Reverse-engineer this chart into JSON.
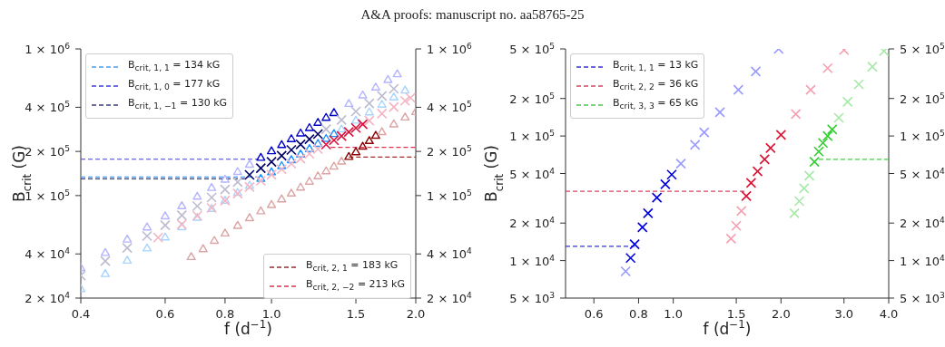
{
  "chart_data": [
    {
      "type": "scatter",
      "annotations": [
        "A&A proofs: manuscript no. aa58765-25"
      ],
      "xlabel": "f (d$^{−1}$)",
      "ylabel": "B$_{crit}$ (G)",
      "log": "xy",
      "legend": [
        "top left",
        "bottom right"
      ],
      "xlim": [
        0.4,
        2.0
      ],
      "xticks": [
        0.4,
        0.6,
        0.8,
        {
          "value": 1,
          "label": "1.0"
        },
        1.5,
        {
          "value": 2,
          "label": "2.0"
        }
      ],
      "ylim": [
        20000,
        1000000
      ],
      "yticks": [
        {
          "value": 20000,
          "label": "2 × 10$^{4}$"
        },
        {
          "value": 40000,
          "label": "4 × 10$^{4}$"
        },
        {
          "value": 100000,
          "label": "1 × 10$^{5}$"
        },
        {
          "value": 200000,
          "label": "2 × 10$^{5}$"
        },
        {
          "value": 400000,
          "label": "4 × 10$^{5}$"
        },
        {
          "value": 1000000,
          "label": "1 × 10$^{6}$"
        }
      ],
      "series": [
        {
          "type": "line",
          "name": "B$_{crit, 1, 1}$ = 134 kG",
          "color": "#3fa0ff",
          "line_style": "dashed",
          "x": [
            0.4,
            0.94
          ],
          "values": [
            134000,
            134000
          ]
        },
        {
          "type": "line",
          "name": "B$_{crit, 1, 0}$ = 177 kG",
          "color": "#3a3aee",
          "line_style": "dashed",
          "x": [
            0.4,
            0.94
          ],
          "values": [
            177000,
            177000
          ]
        },
        {
          "type": "line",
          "name": "B$_{crit, 1, −1}$ = 130 kG",
          "color": "#3a3a80",
          "line_style": "dashed",
          "x": [
            0.4,
            0.88
          ],
          "values": [
            130000,
            130000
          ]
        },
        {
          "type": "line",
          "name": "B$_{crit, 2, 1}$ = 183 kG",
          "color": "#a02828",
          "line_style": "dashed",
          "x": [
            1.45,
            2.0
          ],
          "values": [
            183000,
            183000
          ]
        },
        {
          "type": "line",
          "name": "B$_{crit, 2, −2}$ = 213 kG",
          "color": "#e03050",
          "line_style": "dashed",
          "x": [
            1.33,
            2.0
          ],
          "values": [
            213000,
            213000
          ]
        },
        {
          "type": "scatter",
          "marker": "triangle",
          "x": [
            0.4,
            0.45,
            0.5,
            0.55,
            0.6,
            0.65,
            0.7,
            0.75,
            0.8,
            0.85,
            0.9,
            0.95,
            1.0,
            1.05,
            1.1,
            1.15,
            1.2,
            1.25,
            1.3,
            1.35,
            1.4,
            1.5,
            1.6,
            1.7,
            1.8,
            1.9
          ],
          "values": [
            23000,
            29100,
            35900,
            43500,
            51700,
            60700,
            70400,
            80900,
            92000,
            103900,
            116400,
            129700,
            143800,
            158500,
            173900,
            190100,
            207000,
            224600,
            242900,
            262000,
            281800,
            323400,
            368000,
            415400,
            465800,
            519000
          ],
          "colors": [
            "#a8d4ff",
            "#a8d4ff",
            "#a8d4ff",
            "#a8d4ff",
            "#a8d4ff",
            "#a8d4ff",
            "#a8d4ff",
            "#a8d4ff",
            "#a8d4ff",
            "#a8d4ff",
            "#a8d4ff",
            "#1e90ff",
            "#1e90ff",
            "#1e90ff",
            "#1e90ff",
            "#1e90ff",
            "#1e90ff",
            "#1e90ff",
            "#1e90ff",
            "#1e90ff",
            "#a8d4ff",
            "#a8d4ff",
            "#a8d4ff",
            "#a8d4ff",
            "#a8d4ff",
            "#a8d4ff"
          ]
        },
        {
          "type": "scatter",
          "marker": "triangle",
          "x": [
            0.4,
            0.45,
            0.5,
            0.55,
            0.6,
            0.65,
            0.7,
            0.75,
            0.8,
            0.85,
            0.9,
            0.95,
            1.0,
            1.05,
            1.1,
            1.15,
            1.2,
            1.25,
            1.3,
            1.35,
            1.45,
            1.55,
            1.65,
            1.75,
            1.83
          ],
          "values": [
            32000,
            40500,
            50000,
            60500,
            72000,
            84500,
            98000,
            112500,
            128000,
            144500,
            162000,
            180500,
            200000,
            220500,
            242000,
            264500,
            288000,
            312500,
            338000,
            364500,
            420500,
            480500,
            544500,
            612500,
            669800
          ],
          "colors": [
            "#b4b4ff",
            "#b4b4ff",
            "#b4b4ff",
            "#b4b4ff",
            "#b4b4ff",
            "#b4b4ff",
            "#b4b4ff",
            "#b4b4ff",
            "#b4b4ff",
            "#b4b4ff",
            "#b4b4ff",
            "#0000cc",
            "#0000cc",
            "#0000cc",
            "#0000cc",
            "#0000cc",
            "#0000cc",
            "#0000cc",
            "#0000cc",
            "#0000cc",
            "#b4b4ff",
            "#b4b4ff",
            "#b4b4ff",
            "#b4b4ff",
            "#b4b4ff"
          ]
        },
        {
          "type": "scatter",
          "marker": "cross",
          "x": [
            0.4,
            0.45,
            0.5,
            0.55,
            0.6,
            0.65,
            0.7,
            0.75,
            0.8,
            0.85,
            0.9,
            0.95,
            1.0,
            1.05,
            1.1,
            1.15,
            1.2,
            1.25,
            1.3,
            1.4,
            1.5,
            1.6,
            1.7,
            1.8
          ],
          "values": [
            28500,
            35800,
            44000,
            53000,
            62800,
            73400,
            84800,
            97000,
            110000,
            123800,
            138400,
            153800,
            170000,
            187000,
            204700,
            223300,
            242600,
            262700,
            283600,
            327700,
            374800,
            425100,
            478400,
            534900
          ],
          "colors": [
            "#bcbcd0",
            "#bcbcd0",
            "#bcbcd0",
            "#bcbcd0",
            "#bcbcd0",
            "#bcbcd0",
            "#bcbcd0",
            "#bcbcd0",
            "#bcbcd0",
            "#bcbcd0",
            "#000066",
            "#000066",
            "#000066",
            "#000066",
            "#000066",
            "#000066",
            "#000066",
            "#000066",
            "#bcbcd0",
            "#bcbcd0",
            "#bcbcd0",
            "#bcbcd0",
            "#bcbcd0",
            "#bcbcd0"
          ]
        },
        {
          "type": "scatter",
          "marker": "cross",
          "x": [
            0.58,
            0.65,
            0.7,
            0.75,
            0.8,
            0.85,
            0.9,
            0.95,
            1.0,
            1.05,
            1.1,
            1.15,
            1.2,
            1.25,
            1.3,
            1.35,
            1.4,
            1.45,
            1.5,
            1.55,
            1.6,
            1.7,
            1.8,
            1.9,
            1.95
          ],
          "values": [
            51700,
            63600,
            72700,
            82300,
            92500,
            103300,
            114500,
            126300,
            138600,
            151400,
            164700,
            178500,
            192800,
            207600,
            222800,
            238600,
            254900,
            271500,
            288800,
            306400,
            324500,
            362100,
            401600,
            442900,
            464200
          ],
          "colors": [
            "#f5b4c2",
            "#f5b4c2",
            "#f5b4c2",
            "#f5b4c2",
            "#f5b4c2",
            "#f5b4c2",
            "#f5b4c2",
            "#f5b4c2",
            "#f5b4c2",
            "#f5b4c2",
            "#f5b4c2",
            "#f5b4c2",
            "#f5b4c2",
            "#f5b4c2",
            "#e0103c",
            "#e0103c",
            "#e0103c",
            "#e0103c",
            "#e0103c",
            "#e0103c",
            "#f5b4c2",
            "#f5b4c2",
            "#f5b4c2",
            "#f5b4c2",
            "#f5b4c2"
          ]
        },
        {
          "type": "scatter",
          "marker": "triangle",
          "x": [
            0.68,
            0.72,
            0.76,
            0.8,
            0.85,
            0.9,
            0.95,
            1.0,
            1.05,
            1.1,
            1.15,
            1.2,
            1.25,
            1.3,
            1.35,
            1.4,
            1.45,
            1.5,
            1.55,
            1.6,
            1.65,
            1.7,
            1.8,
            1.9,
            2.0
          ],
          "values": [
            38000,
            43000,
            49000,
            55000,
            62000,
            70000,
            78000,
            86000,
            94000,
            103000,
            113000,
            124000,
            135000,
            146000,
            157000,
            170000,
            183000,
            197000,
            215000,
            235000,
            255000,
            270000,
            305000,
            340000,
            370000
          ],
          "colors": [
            "#dca4a4",
            "#dca4a4",
            "#dca4a4",
            "#dca4a4",
            "#dca4a4",
            "#dca4a4",
            "#dca4a4",
            "#dca4a4",
            "#dca4a4",
            "#dca4a4",
            "#dca4a4",
            "#dca4a4",
            "#dca4a4",
            "#dca4a4",
            "#dca4a4",
            "#dca4a4",
            "#8b0000",
            "#8b0000",
            "#8b0000",
            "#8b0000",
            "#8b0000",
            "#dca4a4",
            "#dca4a4",
            "#dca4a4",
            "#dca4a4"
          ]
        }
      ]
    },
    {
      "type": "scatter",
      "xlabel": "f (d$^{−1}$)",
      "ylabel": "B$_{crit}$ (G)",
      "log": "xy",
      "legend": "top left",
      "xlim": [
        0.5,
        4.0
      ],
      "xticks": [
        0.6,
        0.8,
        {
          "value": 1,
          "label": "1.0"
        },
        1.5,
        {
          "value": 2,
          "label": "2.0"
        },
        {
          "value": 3,
          "label": "3.0"
        },
        {
          "value": 4,
          "label": "4.0"
        }
      ],
      "ylim": [
        5000,
        500000
      ],
      "yticks": [
        {
          "value": 5000,
          "label": "5 × 10$^{3}$"
        },
        {
          "value": 10000,
          "label": "1 × 10$^{4}$"
        },
        {
          "value": 20000,
          "label": "2 × 10$^{4}$"
        },
        {
          "value": 50000,
          "label": "5 × 10$^{4}$"
        },
        {
          "value": 100000,
          "label": "1 × 10$^{5}$"
        },
        {
          "value": 200000,
          "label": "2 × 10$^{5}$"
        },
        {
          "value": 500000,
          "label": "5 × 10$^{5}$"
        }
      ],
      "series": [
        {
          "type": "line",
          "name": "B$_{crit, 1, 1}$ = 13 kG",
          "color": "#3333dd",
          "line_style": "dashed",
          "x": [
            0.5,
            0.78
          ],
          "values": [
            13000,
            13000
          ]
        },
        {
          "type": "line",
          "name": "B$_{crit, 2, 2}$ = 36 kG",
          "color": "#e04060",
          "line_style": "dashed",
          "x": [
            0.5,
            1.6
          ],
          "values": [
            36000,
            36000
          ]
        },
        {
          "type": "line",
          "name": "B$_{crit, 3, 3}$ = 65 kG",
          "color": "#44cc44",
          "line_style": "dashed",
          "x": [
            2.55,
            4.0
          ],
          "values": [
            65000,
            65000
          ]
        },
        {
          "type": "scatter",
          "marker": "cross",
          "x": [
            0.736,
            0.76,
            0.78,
            0.82,
            0.85,
            0.9,
            0.95,
            0.99,
            1.05,
            1.15,
            1.22,
            1.35,
            1.52,
            1.7,
            1.97
          ],
          "values": [
            8200,
            10500,
            13500,
            18500,
            24000,
            32000,
            41000,
            49000,
            60000,
            85000,
            107000,
            155000,
            235000,
            330000,
            500000
          ],
          "colors": [
            "#9999ff",
            "#0000dd",
            "#0000dd",
            "#0000dd",
            "#0000dd",
            "#0000dd",
            "#0000dd",
            "#0000dd",
            "#9999ff",
            "#9999ff",
            "#9999ff",
            "#9999ff",
            "#9999ff",
            "#9999ff",
            "#9999ff"
          ]
        },
        {
          "type": "scatter",
          "marker": "cross",
          "x": [
            1.45,
            1.5,
            1.55,
            1.6,
            1.65,
            1.72,
            1.8,
            1.87,
            2.0,
            2.2,
            2.42,
            2.7,
            3.0
          ],
          "values": [
            15000,
            19000,
            25000,
            33000,
            42000,
            52000,
            65000,
            80000,
            102000,
            150000,
            235000,
            350000,
            490000
          ],
          "colors": [
            "#f5a0b0",
            "#f5a0b0",
            "#f5a0b0",
            "#dd1133",
            "#dd1133",
            "#dd1133",
            "#dd1133",
            "#dd1133",
            "#dd1133",
            "#f5a0b0",
            "#f5a0b0",
            "#f5a0b0",
            "#f5a0b0"
          ]
        },
        {
          "type": "scatter",
          "marker": "cross",
          "x": [
            2.18,
            2.25,
            2.32,
            2.4,
            2.48,
            2.55,
            2.62,
            2.7,
            2.78,
            2.9,
            3.07,
            3.3,
            3.6,
            3.88
          ],
          "values": [
            24000,
            30000,
            38000,
            48000,
            62000,
            75000,
            88000,
            100000,
            113000,
            140000,
            188000,
            260000,
            360000,
            480000
          ],
          "colors": [
            "#a8e8a8",
            "#a8e8a8",
            "#a8e8a8",
            "#a8e8a8",
            "#33cc33",
            "#33cc33",
            "#33cc33",
            "#33cc33",
            "#33cc33",
            "#a8e8a8",
            "#a8e8a8",
            "#a8e8a8",
            "#a8e8a8",
            "#a8e8a8"
          ]
        }
      ]
    }
  ]
}
